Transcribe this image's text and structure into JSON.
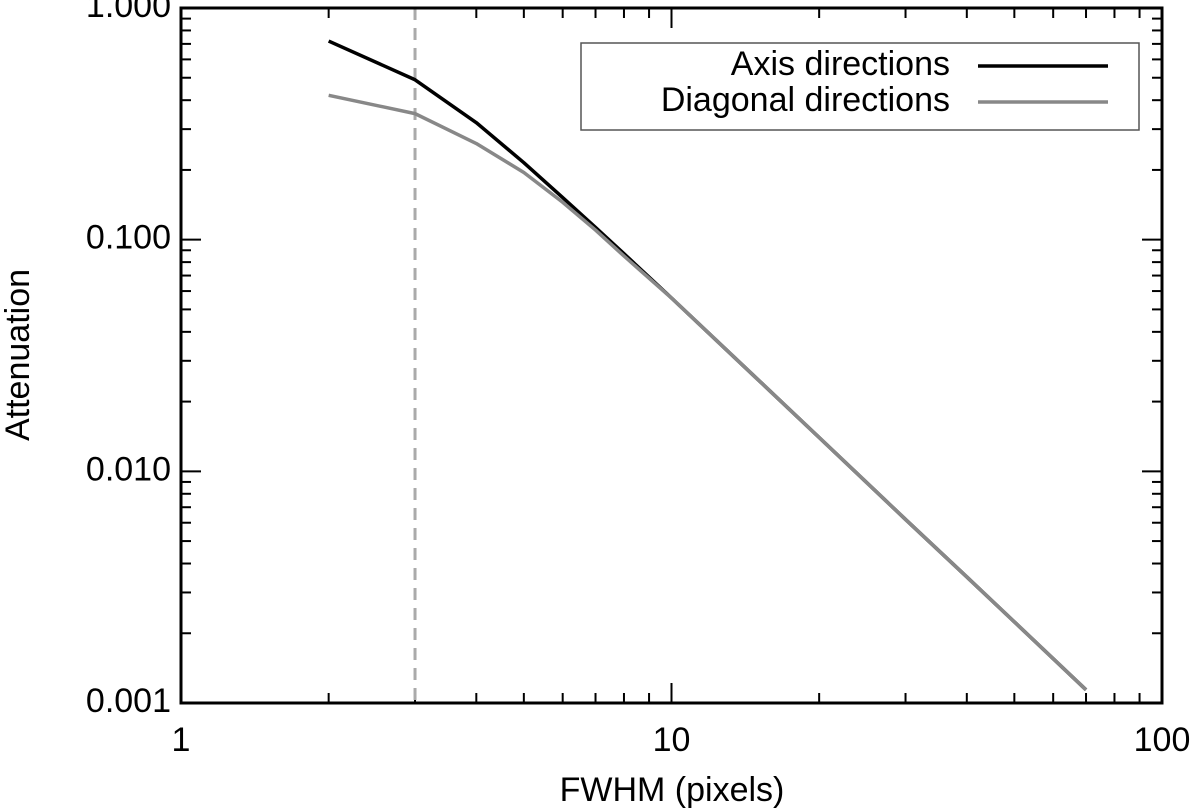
{
  "chart_data": {
    "type": "line",
    "x_label": "FWHM (pixels)",
    "y_label": "Attenuation",
    "x": [
      2,
      3,
      4,
      5,
      6,
      7,
      8,
      10,
      15,
      20,
      30,
      40,
      50,
      70
    ],
    "series": [
      {
        "name": "Axis directions",
        "color": "#000000",
        "values": [
          0.72,
          0.49,
          0.32,
          0.215,
          0.152,
          0.113,
          0.087,
          0.056,
          0.0249,
          0.014,
          0.0062,
          0.0035,
          0.00224,
          0.00114
        ]
      },
      {
        "name": "Diagonal directions",
        "color": "#888888",
        "values": [
          0.42,
          0.35,
          0.26,
          0.195,
          0.145,
          0.11,
          0.085,
          0.056,
          0.0249,
          0.014,
          0.0062,
          0.0035,
          0.00224,
          0.00114
        ]
      }
    ],
    "reference_x": 3,
    "reference_color": "#aaaaaa",
    "xscale": "log",
    "yscale": "log",
    "xlim": [
      1,
      100
    ],
    "xticks": [
      1,
      10,
      100
    ],
    "ylim": [
      0.001,
      1
    ],
    "yticks": [
      {
        "value": 0.001,
        "label": "0.001"
      },
      {
        "value": 0.01,
        "label": "0.010"
      },
      {
        "value": 0.1,
        "label": "0.100"
      },
      {
        "value": 1,
        "label": "1.000"
      }
    ],
    "legend": "upper right"
  }
}
